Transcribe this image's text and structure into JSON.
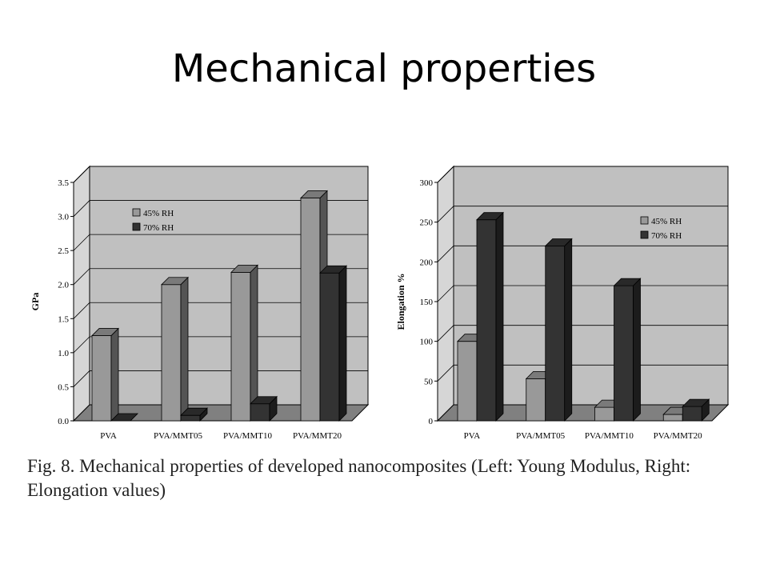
{
  "title": "Mechanical properties",
  "caption": "Fig. 8. Mechanical properties of developed nanocomposites (Left: Young Modulus, Right: Elongation values)",
  "colors": {
    "wall": "#c0c0c0",
    "floor": "#808080",
    "series1": "#999999",
    "series2": "#333333"
  },
  "chart_data": [
    {
      "type": "bar",
      "categories": [
        "PVA",
        "PVA/MMT05",
        "PVA/MMT10",
        "PVA/MMT20"
      ],
      "series": [
        {
          "name": "45% RH",
          "values": [
            1.25,
            2.0,
            2.18,
            3.27
          ]
        },
        {
          "name": "70% RH",
          "values": [
            0.0,
            0.08,
            0.25,
            2.17
          ]
        }
      ],
      "ylabel": "GPa",
      "yticks": [
        "0.0",
        "0.5",
        "1.0",
        "1.5",
        "2.0",
        "2.5",
        "3.0",
        "3.5"
      ],
      "ylim": [
        0,
        3.5
      ],
      "legend_position": "top-left",
      "grid": true
    },
    {
      "type": "bar",
      "categories": [
        "PVA",
        "PVA/MMT05",
        "PVA/MMT10",
        "PVA/MMT20"
      ],
      "series": [
        {
          "name": "45% RH",
          "values": [
            100,
            53,
            17,
            8
          ]
        },
        {
          "name": "70% RH",
          "values": [
            253,
            220,
            170,
            18
          ]
        }
      ],
      "ylabel": "Elongation %",
      "yticks": [
        "0",
        "50",
        "100",
        "150",
        "200",
        "250",
        "300"
      ],
      "ylim": [
        0,
        300
      ],
      "legend_position": "top-right",
      "grid": true
    }
  ]
}
